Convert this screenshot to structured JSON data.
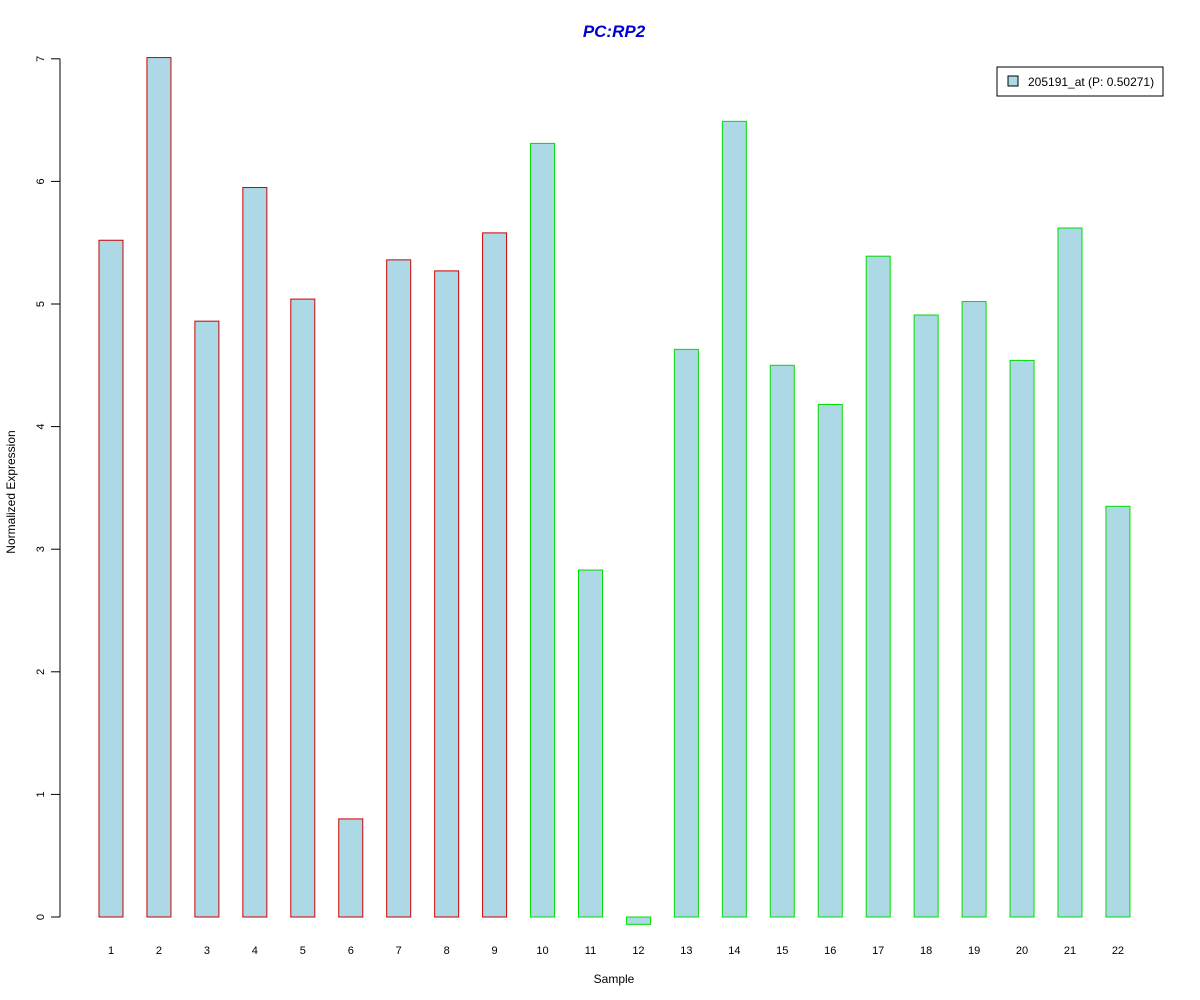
{
  "chart_data": {
    "type": "bar",
    "title": "PC:RP2",
    "xlabel": "Sample",
    "ylabel": "Normalized Expression",
    "categories": [
      "1",
      "2",
      "3",
      "4",
      "5",
      "6",
      "7",
      "8",
      "9",
      "10",
      "11",
      "12",
      "13",
      "14",
      "15",
      "16",
      "17",
      "18",
      "19",
      "20",
      "21",
      "22"
    ],
    "series": [
      {
        "name": "205191_at (P: 0.50271)",
        "values": [
          5.52,
          7.01,
          4.86,
          5.95,
          5.04,
          0.8,
          5.36,
          5.27,
          5.58,
          6.31,
          2.83,
          -0.06,
          4.63,
          6.49,
          4.5,
          4.18,
          5.39,
          4.91,
          5.02,
          4.54,
          5.62,
          3.35
        ]
      }
    ],
    "bar_fill": "#add8e6",
    "bar_border_colors": [
      "#cc0000",
      "#cc0000",
      "#cc0000",
      "#cc0000",
      "#cc0000",
      "#cc0000",
      "#cc0000",
      "#cc0000",
      "#cc0000",
      "#00dd00",
      "#00dd00",
      "#00dd00",
      "#00dd00",
      "#00dd00",
      "#00dd00",
      "#00dd00",
      "#00dd00",
      "#00dd00",
      "#00dd00",
      "#00dd00",
      "#00dd00",
      "#00dd00"
    ],
    "y_ticks": [
      0,
      1,
      2,
      3,
      4,
      5,
      6,
      7
    ],
    "ylim": [
      0,
      7
    ],
    "grid": false,
    "legend_position": "top-right",
    "title_color": "#0000cc"
  }
}
